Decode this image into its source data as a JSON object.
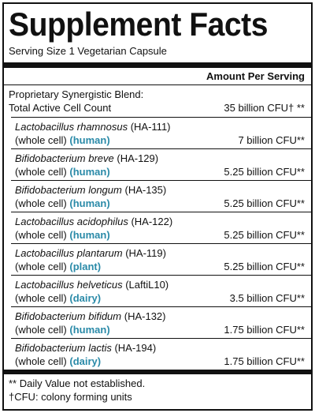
{
  "title": "Supplement Facts",
  "serving_size": "Serving Size 1 Vegetarian Capsule",
  "header": "Amount Per Serving",
  "blend": {
    "name": "Proprietary Synergistic Blend:",
    "total_label": "Total Active Cell Count",
    "total_amount": "35 billion CFU† **"
  },
  "ingredients": [
    {
      "name": "Lactobacillus rhamnosus",
      "strain": "(HA-111)",
      "form": "(whole cell)",
      "source": "(human)",
      "amount": "7 billion CFU**"
    },
    {
      "name": "Bifidobacterium breve",
      "strain": "(HA-129)",
      "form": "(whole cell)",
      "source": "(human)",
      "amount": "5.25 billion CFU**"
    },
    {
      "name": "Bifidobacterium longum",
      "strain": "(HA-135)",
      "form": "(whole cell)",
      "source": "(human)",
      "amount": "5.25 billion CFU**"
    },
    {
      "name": "Lactobacillus acidophilus",
      "strain": "(HA-122)",
      "form": "(whole cell)",
      "source": "(human)",
      "amount": "5.25 billion CFU**"
    },
    {
      "name": "Lactobacillus plantarum",
      "strain": "(HA-119)",
      "form": "(whole cell)",
      "source": "(plant)",
      "amount": "5.25 billion CFU**"
    },
    {
      "name": "Lactobacillus helveticus",
      "strain": "(LaftiL10)",
      "form": "(whole cell)",
      "source": "(dairy)",
      "amount": "3.5 billion CFU**"
    },
    {
      "name": "Bifidobacterium bifidum",
      "strain": "(HA-132)",
      "form": "(whole cell)",
      "source": "(human)",
      "amount": "1.75 billion CFU**"
    },
    {
      "name": "Bifidobacterium lactis",
      "strain": "(HA-194)",
      "form": "(whole cell)",
      "source": "(dairy)",
      "amount": "1.75 billion CFU**"
    }
  ],
  "footnotes": [
    "** Daily Value not established.",
    "†CFU: colony forming units"
  ]
}
